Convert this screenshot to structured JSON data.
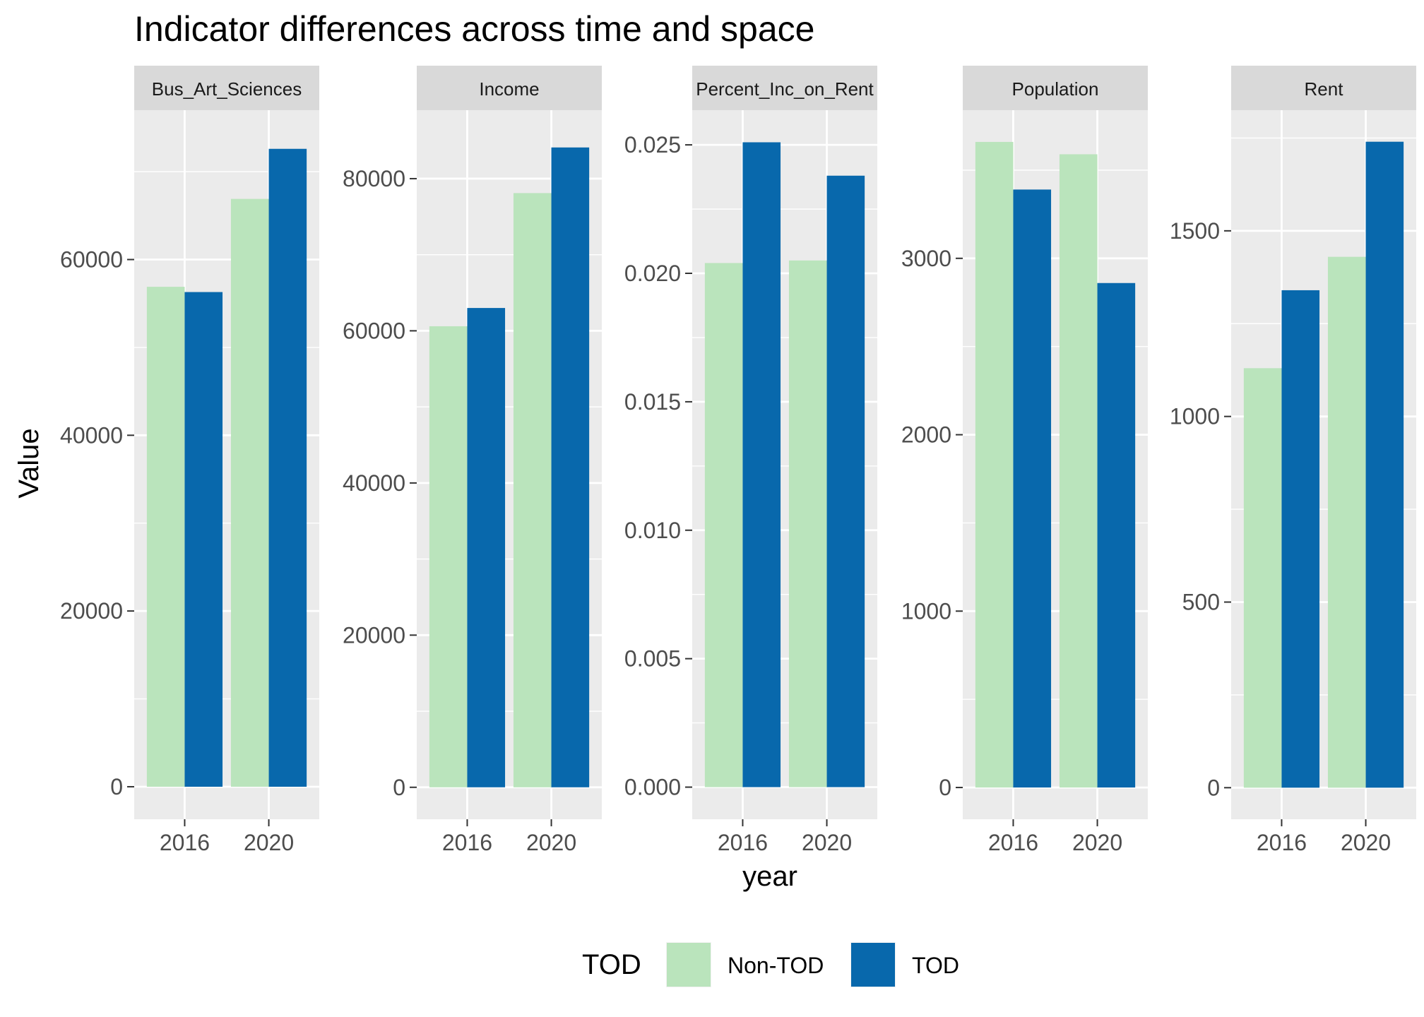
{
  "chart_data": {
    "type": "bar",
    "title": "Indicator differences across time and space",
    "xlabel": "year",
    "ylabel": "Value",
    "categories": [
      "2016",
      "2020"
    ],
    "legend": {
      "title": "TOD",
      "position": "bottom",
      "items": [
        {
          "label": "Non-TOD",
          "color": "#bae4bc"
        },
        {
          "label": "TOD",
          "color": "#0868ac"
        }
      ]
    },
    "grid": true,
    "facet_scales": "free_y",
    "panels": [
      {
        "strip": "Bus_Art_Sciences",
        "ylim": [
          -3700,
          77000
        ],
        "yticks": [
          0,
          20000,
          40000,
          60000
        ],
        "ytick_labels": [
          "0",
          "20000",
          "40000",
          "60000"
        ],
        "series": [
          {
            "name": "Non-TOD",
            "values": [
              56900,
              66900
            ]
          },
          {
            "name": "TOD",
            "values": [
              56300,
              72600
            ]
          }
        ]
      },
      {
        "strip": "Income",
        "ylim": [
          -4200,
          89000
        ],
        "yticks": [
          0,
          20000,
          40000,
          60000,
          80000
        ],
        "ytick_labels": [
          "0",
          "20000",
          "40000",
          "60000",
          "80000"
        ],
        "series": [
          {
            "name": "Non-TOD",
            "values": [
              60600,
              78100
            ]
          },
          {
            "name": "TOD",
            "values": [
              63000,
              84100
            ]
          }
        ]
      },
      {
        "strip": "Percent_Inc_on_Rent",
        "ylim": [
          -0.00125,
          0.02635
        ],
        "yticks": [
          0,
          0.005,
          0.01,
          0.015,
          0.02,
          0.025
        ],
        "ytick_labels": [
          "0.000",
          "0.005",
          "0.010",
          "0.015",
          "0.020",
          "0.025"
        ],
        "series": [
          {
            "name": "Non-TOD",
            "values": [
              0.0204,
              0.0205
            ]
          },
          {
            "name": "TOD",
            "values": [
              0.0251,
              0.0238
            ]
          }
        ]
      },
      {
        "strip": "Population",
        "ylim": [
          -180,
          3840
        ],
        "yticks": [
          0,
          1000,
          2000,
          3000
        ],
        "ytick_labels": [
          "0",
          "1000",
          "2000",
          "3000"
        ],
        "series": [
          {
            "name": "Non-TOD",
            "values": [
              3660,
              3590
            ]
          },
          {
            "name": "TOD",
            "values": [
              3390,
              2860
            ]
          }
        ]
      },
      {
        "strip": "Rent",
        "ylim": [
          -85,
          1825
        ],
        "yticks": [
          0,
          500,
          1000,
          1500
        ],
        "ytick_labels": [
          "0",
          "500",
          "1000",
          "1500"
        ],
        "series": [
          {
            "name": "Non-TOD",
            "values": [
              1130,
              1430
            ]
          },
          {
            "name": "TOD",
            "values": [
              1340,
              1740
            ]
          }
        ]
      }
    ]
  }
}
